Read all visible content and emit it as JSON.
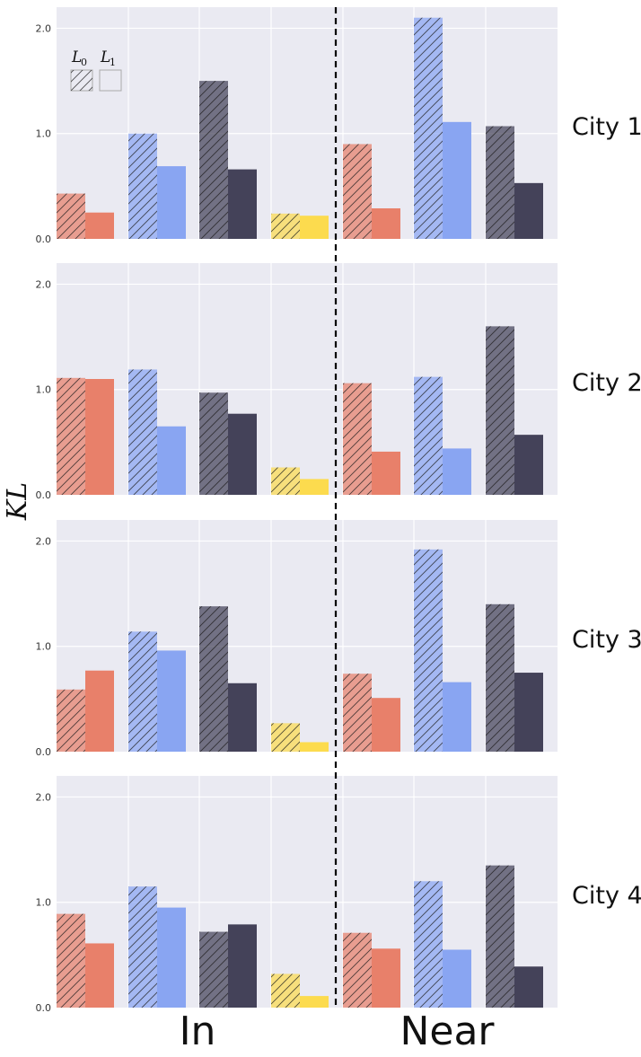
{
  "chart_data": {
    "type": "bar",
    "ylabel": "KL",
    "ylim": [
      0,
      2.2
    ],
    "yticks": [
      "0.0",
      "1.0",
      "2.0"
    ],
    "groups": [
      "In",
      "Near"
    ],
    "colors": [
      "#e8806a",
      "#89a5f2",
      "#444259",
      "#fcdb4e"
    ],
    "legend": [
      {
        "label": "L",
        "sub": "0",
        "style": "hatched"
      },
      {
        "label": "L",
        "sub": "1",
        "style": "solid"
      }
    ],
    "panels": [
      {
        "label": "City 1",
        "in": [
          [
            0.43,
            0.25
          ],
          [
            1.0,
            0.69
          ],
          [
            1.5,
            0.66
          ],
          [
            0.24,
            0.22
          ]
        ],
        "near": [
          [
            0.9,
            0.29
          ],
          [
            2.1,
            1.11
          ],
          [
            1.07,
            0.53
          ]
        ]
      },
      {
        "label": "City 2",
        "in": [
          [
            1.11,
            1.1
          ],
          [
            1.19,
            0.65
          ],
          [
            0.97,
            0.77
          ],
          [
            0.26,
            0.15
          ]
        ],
        "near": [
          [
            1.06,
            0.41
          ],
          [
            1.12,
            0.44
          ],
          [
            1.6,
            0.57
          ]
        ]
      },
      {
        "label": "City 3",
        "in": [
          [
            0.59,
            0.77
          ],
          [
            1.14,
            0.96
          ],
          [
            1.38,
            0.65
          ],
          [
            0.27,
            0.09
          ]
        ],
        "near": [
          [
            0.74,
            0.51
          ],
          [
            1.92,
            0.66
          ],
          [
            1.4,
            0.75
          ]
        ]
      },
      {
        "label": "City 4",
        "in": [
          [
            0.89,
            0.61
          ],
          [
            1.15,
            0.95
          ],
          [
            0.72,
            0.79
          ],
          [
            0.32,
            0.11
          ]
        ],
        "near": [
          [
            0.71,
            0.56
          ],
          [
            1.2,
            0.55
          ],
          [
            1.35,
            0.39
          ]
        ]
      }
    ]
  }
}
